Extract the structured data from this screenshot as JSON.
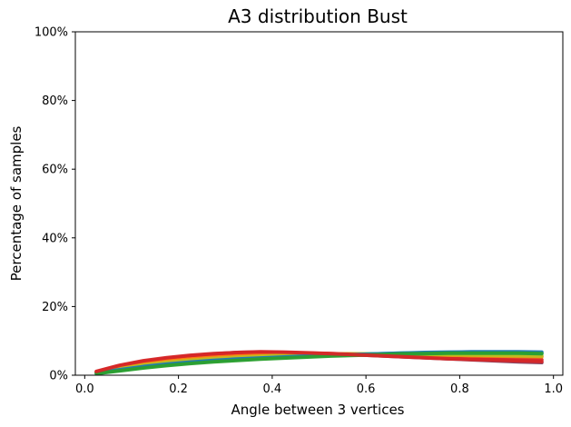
{
  "chart_data": {
    "type": "line",
    "title": "A3 distribution Bust",
    "xlabel": "Angle between 3 vertices",
    "ylabel": "Percentage of samples",
    "xlim": [
      -0.02,
      1.02
    ],
    "ylim": [
      0,
      100
    ],
    "xticks": [
      0.0,
      0.2,
      0.4,
      0.6,
      0.8,
      1.0
    ],
    "xtick_labels": [
      "0.0",
      "0.2",
      "0.4",
      "0.6",
      "0.8",
      "1.0"
    ],
    "yticks": [
      0,
      20,
      40,
      60,
      80,
      100
    ],
    "ytick_labels": [
      "0%",
      "20%",
      "40%",
      "60%",
      "80%",
      "100%"
    ],
    "grid": false,
    "legend": "none",
    "x": [
      0.025,
      0.075,
      0.125,
      0.175,
      0.225,
      0.275,
      0.325,
      0.375,
      0.425,
      0.475,
      0.525,
      0.575,
      0.625,
      0.675,
      0.725,
      0.775,
      0.825,
      0.875,
      0.925,
      0.975
    ],
    "series": [
      {
        "color": "#7f3f5f",
        "values": [
          0.9,
          2.6,
          3.9,
          4.9,
          5.6,
          6.2,
          6.6,
          6.7,
          6.6,
          6.4,
          6.2,
          6.0,
          5.7,
          5.4,
          5.1,
          4.8,
          4.5,
          4.2,
          3.9,
          3.7
        ]
      },
      {
        "color": "#d62728",
        "values": [
          1.0,
          2.8,
          4.0,
          4.9,
          5.5,
          6.0,
          6.3,
          6.5,
          6.5,
          6.4,
          6.3,
          6.1,
          5.9,
          5.7,
          5.5,
          5.3,
          5.1,
          4.9,
          4.7,
          4.5
        ]
      },
      {
        "color": "#ff7f0e",
        "values": [
          0.8,
          2.2,
          3.3,
          4.1,
          4.7,
          5.2,
          5.6,
          5.9,
          6.1,
          6.2,
          6.2,
          6.2,
          6.1,
          6.0,
          5.9,
          5.8,
          5.7,
          5.6,
          5.5,
          5.4
        ]
      },
      {
        "color": "#bcbd22",
        "values": [
          0.7,
          1.9,
          2.9,
          3.7,
          4.3,
          4.8,
          5.2,
          5.5,
          5.8,
          6.0,
          6.1,
          6.2,
          6.2,
          6.2,
          6.1,
          6.0,
          5.9,
          5.8,
          5.7,
          5.6
        ]
      },
      {
        "color": "#17becf",
        "values": [
          0.5,
          1.4,
          2.3,
          3.0,
          3.6,
          4.1,
          4.5,
          4.9,
          5.2,
          5.5,
          5.8,
          6.0,
          6.2,
          6.4,
          6.5,
          6.6,
          6.6,
          6.6,
          6.5,
          6.4
        ]
      },
      {
        "color": "#1f77b4",
        "values": [
          0.6,
          1.6,
          2.5,
          3.2,
          3.8,
          4.3,
          4.7,
          5.0,
          5.3,
          5.6,
          5.8,
          6.0,
          6.2,
          6.4,
          6.6,
          6.7,
          6.8,
          6.8,
          6.8,
          6.7
        ]
      },
      {
        "color": "#2ca02c",
        "values": [
          0.5,
          1.3,
          2.1,
          2.8,
          3.4,
          3.9,
          4.3,
          4.7,
          5.0,
          5.3,
          5.6,
          5.8,
          6.0,
          6.2,
          6.3,
          6.4,
          6.4,
          6.4,
          6.4,
          6.3
        ]
      },
      {
        "color": "#d62728",
        "values": [
          1.1,
          2.9,
          4.2,
          5.1,
          5.8,
          6.3,
          6.6,
          6.8,
          6.7,
          6.5,
          6.3,
          6.0,
          5.7,
          5.4,
          5.1,
          4.8,
          4.6,
          4.4,
          4.2,
          4.0
        ]
      }
    ]
  }
}
